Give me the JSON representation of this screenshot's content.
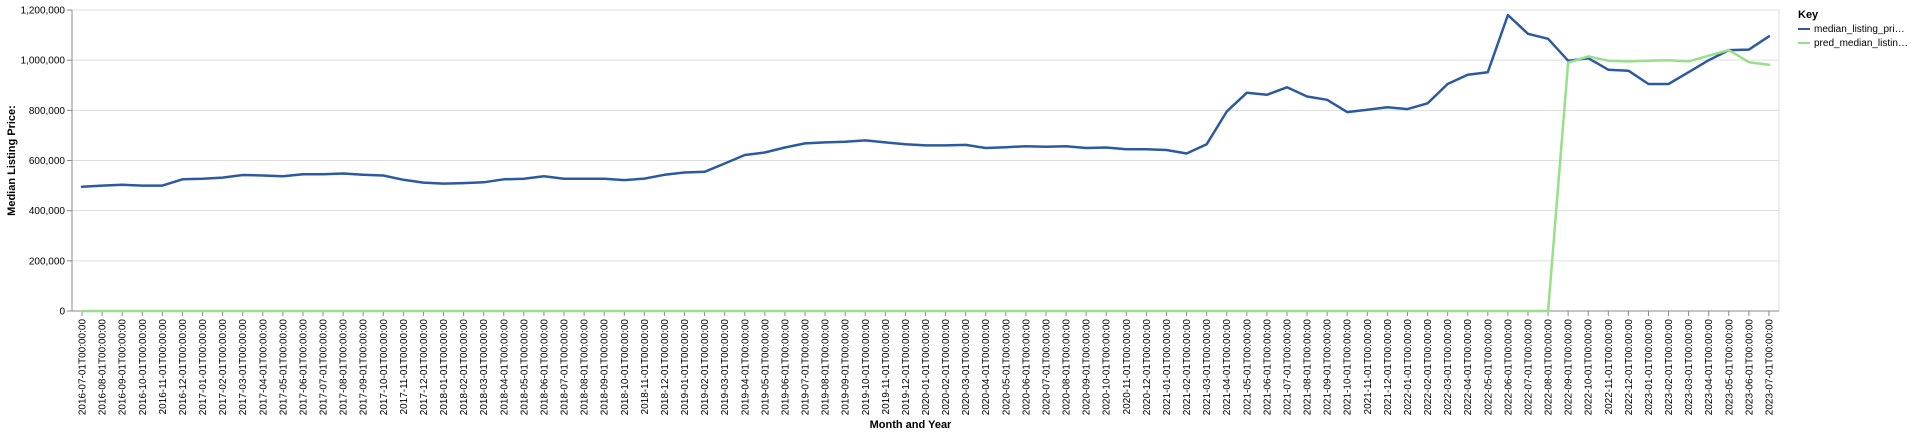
{
  "chart_data": {
    "type": "line",
    "title": "",
    "xlabel": "Month and Year",
    "ylabel": "Median Listing Price:",
    "ylim": [
      0,
      1200000
    ],
    "yticks": [
      0,
      200000,
      400000,
      600000,
      800000,
      1000000,
      1200000
    ],
    "ytick_labels": [
      "0",
      "200,000",
      "400,000",
      "600,000",
      "800,000",
      "1,000,000",
      "1,200,000"
    ],
    "grid": true,
    "legend": {
      "title": "Key",
      "position": "right",
      "entries": [
        "median_listing_pri…",
        "pred_median_listin…"
      ]
    },
    "x": [
      "2016-07-01T00:00:00",
      "2016-08-01T00:00:00",
      "2016-09-01T00:00:00",
      "2016-10-01T00:00:00",
      "2016-11-01T00:00:00",
      "2016-12-01T00:00:00",
      "2017-01-01T00:00:00",
      "2017-02-01T00:00:00",
      "2017-03-01T00:00:00",
      "2017-04-01T00:00:00",
      "2017-05-01T00:00:00",
      "2017-06-01T00:00:00",
      "2017-07-01T00:00:00",
      "2017-08-01T00:00:00",
      "2017-09-01T00:00:00",
      "2017-10-01T00:00:00",
      "2017-11-01T00:00:00",
      "2017-12-01T00:00:00",
      "2018-01-01T00:00:00",
      "2018-02-01T00:00:00",
      "2018-03-01T00:00:00",
      "2018-04-01T00:00:00",
      "2018-05-01T00:00:00",
      "2018-06-01T00:00:00",
      "2018-07-01T00:00:00",
      "2018-08-01T00:00:00",
      "2018-09-01T00:00:00",
      "2018-10-01T00:00:00",
      "2018-11-01T00:00:00",
      "2018-12-01T00:00:00",
      "2019-01-01T00:00:00",
      "2019-02-01T00:00:00",
      "2019-03-01T00:00:00",
      "2019-04-01T00:00:00",
      "2019-05-01T00:00:00",
      "2019-06-01T00:00:00",
      "2019-07-01T00:00:00",
      "2019-08-01T00:00:00",
      "2019-09-01T00:00:00",
      "2019-10-01T00:00:00",
      "2019-11-01T00:00:00",
      "2019-12-01T00:00:00",
      "2020-01-01T00:00:00",
      "2020-02-01T00:00:00",
      "2020-03-01T00:00:00",
      "2020-04-01T00:00:00",
      "2020-05-01T00:00:00",
      "2020-06-01T00:00:00",
      "2020-07-01T00:00:00",
      "2020-08-01T00:00:00",
      "2020-09-01T00:00:00",
      "2020-10-01T00:00:00",
      "2020-11-01T00:00:00",
      "2020-12-01T00:00:00",
      "2021-01-01T00:00:00",
      "2021-02-01T00:00:00",
      "2021-03-01T00:00:00",
      "2021-04-01T00:00:00",
      "2021-05-01T00:00:00",
      "2021-06-01T00:00:00",
      "2021-07-01T00:00:00",
      "2021-08-01T00:00:00",
      "2021-09-01T00:00:00",
      "2021-10-01T00:00:00",
      "2021-11-01T00:00:00",
      "2021-12-01T00:00:00",
      "2022-01-01T00:00:00",
      "2022-02-01T00:00:00",
      "2022-03-01T00:00:00",
      "2022-04-01T00:00:00",
      "2022-05-01T00:00:00",
      "2022-06-01T00:00:00",
      "2022-07-01T00:00:00",
      "2022-08-01T00:00:00",
      "2022-09-01T00:00:00",
      "2022-10-01T00:00:00",
      "2022-11-01T00:00:00",
      "2022-12-01T00:00:00",
      "2023-01-01T00:00:00",
      "2023-02-01T00:00:00",
      "2023-03-01T00:00:00",
      "2023-04-01T00:00:00",
      "2023-05-01T00:00:00",
      "2023-06-01T00:00:00",
      "2023-07-01T00:00:00"
    ],
    "series": [
      {
        "name": "median_listing_pri…",
        "color": "#2c5aa0",
        "values": [
          495000,
          500000,
          503000,
          500000,
          500000,
          525000,
          527000,
          532000,
          542000,
          540000,
          537000,
          545000,
          545000,
          548000,
          543000,
          540000,
          523000,
          512000,
          508000,
          510000,
          513000,
          525000,
          527000,
          537000,
          527000,
          527000,
          527000,
          522000,
          528000,
          543000,
          552000,
          555000,
          588000,
          622000,
          632000,
          652000,
          668000,
          672000,
          675000,
          680000,
          672000,
          665000,
          660000,
          660000,
          662000,
          650000,
          653000,
          657000,
          655000,
          657000,
          650000,
          652000,
          645000,
          645000,
          642000,
          628000,
          665000,
          795000,
          870000,
          862000,
          892000,
          855000,
          842000,
          793000,
          802000,
          812000,
          805000,
          828000,
          905000,
          942000,
          952000,
          1180000,
          1105000,
          1085000,
          998000,
          1008000,
          962000,
          958000,
          905000,
          905000,
          952000,
          1000000,
          1040000,
          1042000,
          1095000
        ]
      },
      {
        "name": "pred_median_listin…",
        "color": "#98df8a",
        "values": [
          0,
          0,
          0,
          0,
          0,
          0,
          0,
          0,
          0,
          0,
          0,
          0,
          0,
          0,
          0,
          0,
          0,
          0,
          0,
          0,
          0,
          0,
          0,
          0,
          0,
          0,
          0,
          0,
          0,
          0,
          0,
          0,
          0,
          0,
          0,
          0,
          0,
          0,
          0,
          0,
          0,
          0,
          0,
          0,
          0,
          0,
          0,
          0,
          0,
          0,
          0,
          0,
          0,
          0,
          0,
          0,
          0,
          0,
          0,
          0,
          0,
          0,
          0,
          0,
          0,
          0,
          0,
          0,
          0,
          0,
          0,
          0,
          0,
          0,
          990000,
          1015000,
          998000,
          995000,
          998000,
          1000000,
          995000,
          1018000,
          1040000,
          992000,
          982000
        ]
      }
    ]
  }
}
